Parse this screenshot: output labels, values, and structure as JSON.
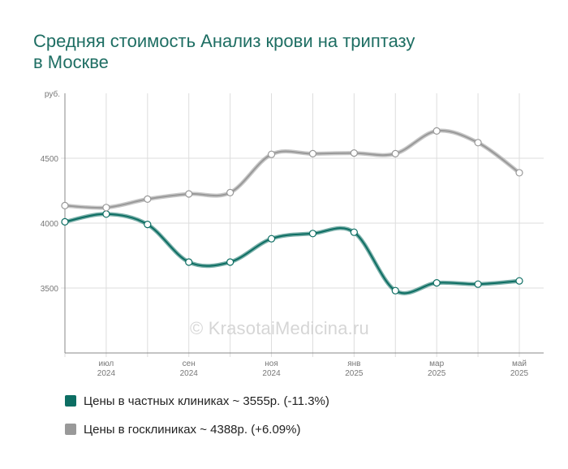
{
  "title": {
    "line1": "Средняя стоимость Анализ крови на триптазу",
    "line2": "в Москве"
  },
  "watermark": "© KrasotaiMedicina.ru",
  "legend": [
    {
      "label": "Цены в частных клиниках ~ 3555р. (-11.3%)",
      "color": "#0d6e63"
    },
    {
      "label": "Цены в госклиниках ~ 4388р. (+6.09%)",
      "color": "#999999"
    }
  ],
  "chart_data": {
    "type": "line",
    "y_unit": "руб.",
    "ylim": [
      3000,
      5000
    ],
    "yticks": [
      3500,
      4000,
      4500
    ],
    "x_tick_labels": [
      {
        "month": "июл",
        "year": "2024"
      },
      {
        "month": "сен",
        "year": "2024"
      },
      {
        "month": "ноя",
        "year": "2024"
      },
      {
        "month": "янв",
        "year": "2025"
      },
      {
        "month": "мар",
        "year": "2025"
      },
      {
        "month": "май",
        "year": "2025"
      }
    ],
    "x": [
      "2024-06",
      "2024-07",
      "2024-08",
      "2024-09",
      "2024-10",
      "2024-11",
      "2024-12",
      "2025-01",
      "2025-02",
      "2025-03",
      "2025-04",
      "2025-05"
    ],
    "series": [
      {
        "name": "Цены в частных клиниках",
        "color": "#0d6e63",
        "values": [
          4010,
          4070,
          3990,
          3700,
          3700,
          3880,
          3920,
          3930,
          3480,
          3540,
          3530,
          3555
        ]
      },
      {
        "name": "Цены в госклиниках",
        "color": "#999999",
        "values": [
          4135,
          4120,
          4185,
          4225,
          4235,
          4530,
          4535,
          4540,
          4535,
          4710,
          4620,
          4388
        ]
      }
    ],
    "grid": true
  }
}
